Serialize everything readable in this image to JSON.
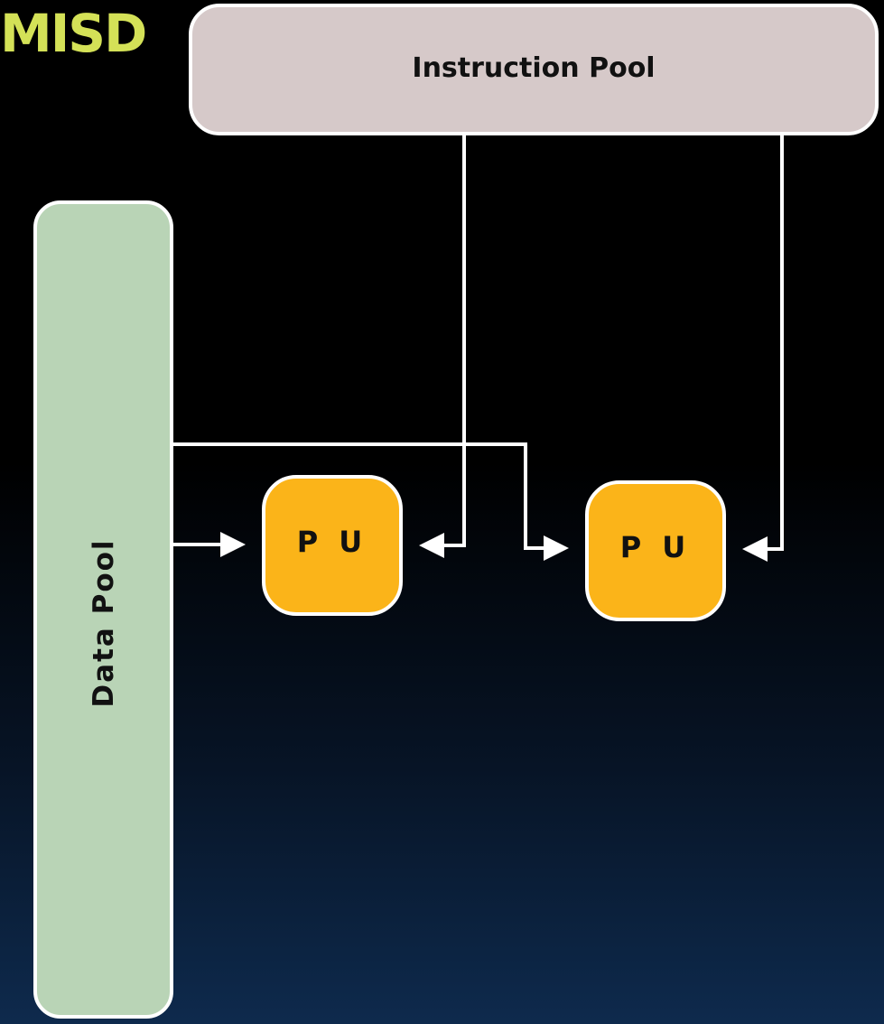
{
  "diagram": {
    "title": "MISD",
    "instruction_pool": {
      "label": "Instruction Pool"
    },
    "data_pool": {
      "label": "Data Pool"
    },
    "processing_units": [
      {
        "label": "P U"
      },
      {
        "label": "P U"
      }
    ],
    "connections": [
      {
        "from": "Data Pool",
        "to": "P U 1"
      },
      {
        "from": "Data Pool",
        "to": "P U 2"
      },
      {
        "from": "Instruction Pool",
        "to": "P U 1"
      },
      {
        "from": "Instruction Pool",
        "to": "P U 2"
      }
    ]
  },
  "colors": {
    "title": "#d4e157",
    "instruction_pool_fill": "#d6c9c9",
    "data_pool_fill": "#b9d4b6",
    "pu_fill": "#fbb419",
    "line": "#ffffff",
    "border": "#ffffff"
  }
}
